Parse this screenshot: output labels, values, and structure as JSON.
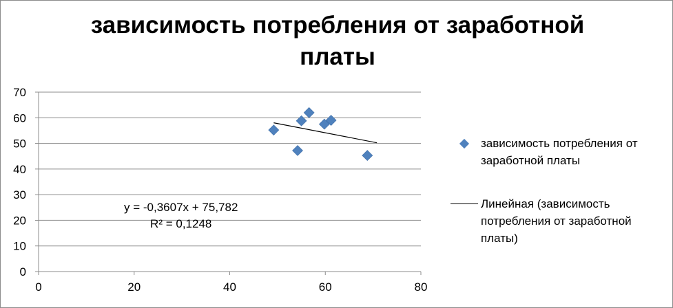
{
  "chart_data": {
    "type": "scatter",
    "title": "зависимость потребления от заработной\nплаты",
    "xlabel": "",
    "ylabel": "",
    "xlim": [
      0,
      80
    ],
    "ylim": [
      0,
      70
    ],
    "x_ticks": [
      0,
      20,
      40,
      60,
      80
    ],
    "y_ticks": [
      0,
      10,
      20,
      30,
      40,
      50,
      60,
      70
    ],
    "grid": {
      "horizontal": true,
      "vertical": false
    },
    "legend_position": "right",
    "series": [
      {
        "name": "зависимость потребления от заработной платы",
        "color": "#4f81bd",
        "marker": "diamond",
        "x": [
          49.2,
          54.2,
          55.0,
          56.6,
          59.8,
          61.2,
          68.8
        ],
        "y": [
          55.2,
          47.2,
          58.8,
          62.0,
          57.5,
          59.0,
          45.3
        ]
      }
    ],
    "trendline": {
      "name": "Линейная (зависимость потребления от заработной платы)",
      "color": "#000000",
      "slope": -0.3607,
      "intercept": 75.782,
      "x_range": [
        49.2,
        70.8
      ],
      "equation": "y = -0,3607x + 75,782",
      "r_squared": "R² = 0,1248"
    }
  }
}
